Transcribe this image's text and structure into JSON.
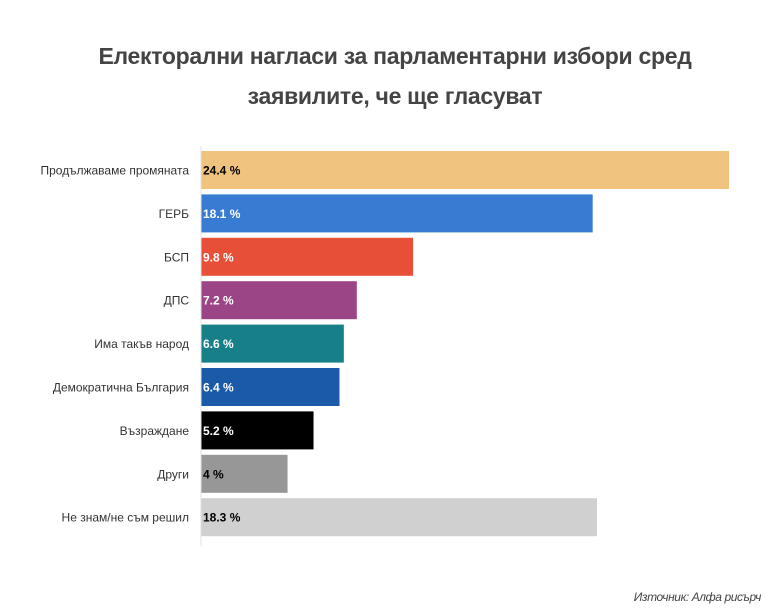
{
  "chart_data": {
    "type": "bar",
    "orientation": "horizontal",
    "title_lines": [
      "Електорални нагласи за парламентарни избори сред",
      "заявилите, че ще гласуват"
    ],
    "categories": [
      "Продължаваме промяната",
      "ГЕРБ",
      "БСП",
      "ДПС",
      "Има такъв народ",
      "Демократична България",
      "Възраждане",
      "Други",
      "Не знам/не съм решил"
    ],
    "values": [
      24.4,
      18.1,
      9.8,
      7.2,
      6.6,
      6.4,
      5.2,
      4,
      18.3
    ],
    "data_labels": [
      "24.4 %",
      "18.1 %",
      "9.8 %",
      "7.2 %",
      "6.6 %",
      "6.4 %",
      "5.2 %",
      "4 %",
      "18.3 %"
    ],
    "colors": [
      "#f0c47e",
      "#377bd3",
      "#e74f38",
      "#9c4586",
      "#177f87",
      "#1b5aa8",
      "#000000",
      "#979797",
      "#d0d0d0"
    ],
    "label_colors": [
      "#000000",
      "#ffffff",
      "#ffffff",
      "#ffffff",
      "#ffffff",
      "#ffffff",
      "#ffffff",
      "#000000",
      "#000000"
    ],
    "xlim": [
      0,
      24.4
    ],
    "grid": false,
    "source": "Източник: Алфа рисърч"
  }
}
